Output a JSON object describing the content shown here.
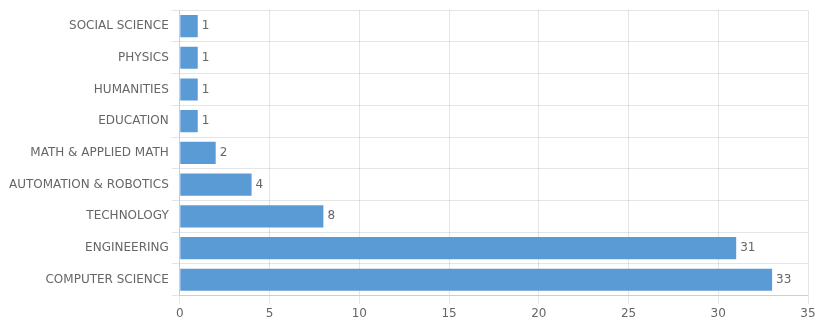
{
  "chart_data": {
    "type": "bar",
    "orientation": "horizontal",
    "categories": [
      "COMPUTER SCIENCE",
      "ENGINEERING",
      "TECHNOLOGY",
      "AUTOMATION & ROBOTICS",
      "MATH & APPLIED MATH",
      "EDUCATION",
      "HUMANITIES",
      "PHYSICS",
      "SOCIAL SCIENCE"
    ],
    "values": [
      33,
      31,
      8,
      4,
      2,
      1,
      1,
      1,
      1
    ],
    "color": "#5B9BD5",
    "xlim": [
      0,
      35
    ],
    "xticks": [
      0,
      5,
      10,
      15,
      20,
      25,
      30,
      35
    ],
    "grid": true,
    "data_labels": true
  }
}
